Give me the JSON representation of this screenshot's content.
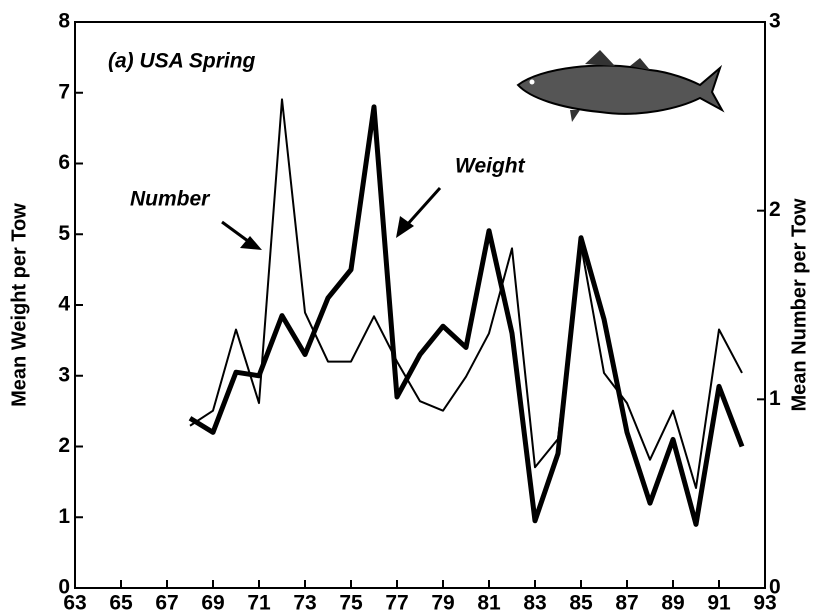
{
  "chart_data": {
    "type": "line",
    "annotation": "(a) USA Spring",
    "ylabel": "Mean Weight per Tow",
    "y2label": "Mean Number per Tow",
    "x": [
      68,
      69,
      70,
      71,
      72,
      73,
      74,
      75,
      76,
      77,
      78,
      79,
      80,
      81,
      82,
      83,
      84,
      85,
      86,
      87,
      88,
      89,
      90,
      91,
      92
    ],
    "series": [
      {
        "name": "Weight",
        "color": "#000000",
        "width": 5,
        "values": [
          2.4,
          2.2,
          3.05,
          3.0,
          3.85,
          3.3,
          4.1,
          4.5,
          6.8,
          2.7,
          3.3,
          3.7,
          3.4,
          5.05,
          3.6,
          0.95,
          1.9,
          4.95,
          3.8,
          2.2,
          1.2,
          2.1,
          0.9,
          2.85,
          2.0
        ]
      },
      {
        "name": "Number",
        "color": "#000000",
        "width": 2,
        "axis": "y2",
        "values": [
          0.86,
          0.94,
          1.37,
          0.98,
          2.59,
          1.46,
          1.2,
          1.2,
          1.44,
          1.2,
          0.99,
          0.94,
          1.12,
          1.35,
          1.8,
          0.64,
          0.79,
          1.82,
          1.14,
          0.98,
          0.68,
          0.94,
          0.53,
          1.37,
          1.14
        ]
      }
    ],
    "xlim": [
      63,
      93
    ],
    "xticks": [
      63,
      65,
      67,
      69,
      71,
      73,
      75,
      77,
      79,
      81,
      83,
      85,
      87,
      89,
      91,
      93
    ],
    "ylim": [
      0,
      8
    ],
    "yticks": [
      0,
      1,
      2,
      3,
      4,
      5,
      6,
      7,
      8
    ],
    "y2lim": [
      0,
      3
    ],
    "y2ticks": [
      0,
      1,
      2,
      3
    ]
  }
}
